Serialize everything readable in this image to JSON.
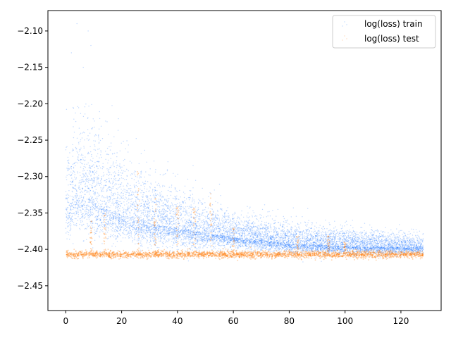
{
  "chart_data": {
    "type": "scatter",
    "title": "",
    "xlabel": "",
    "ylabel": "",
    "xlim": [
      -6.4,
      134.4
    ],
    "ylim": [
      -2.484,
      -2.072
    ],
    "xticks": [
      0,
      20,
      40,
      60,
      80,
      100,
      120
    ],
    "xtick_labels": [
      "0",
      "20",
      "40",
      "60",
      "80",
      "100",
      "120"
    ],
    "yticks": [
      -2.1,
      -2.15,
      -2.2,
      -2.25,
      -2.3,
      -2.35,
      -2.4,
      -2.45
    ],
    "ytick_labels": [
      "−2.10",
      "−2.15",
      "−2.20",
      "−2.25",
      "−2.30",
      "−2.35",
      "−2.40",
      "−2.45"
    ],
    "grid": false,
    "legend_position": "top-right",
    "series": [
      {
        "name": "log(loss) train",
        "color": "#1f77ff",
        "x_range": [
          0,
          128
        ],
        "center_curve": {
          "x": [
            0,
            4,
            8,
            15,
            25,
            40,
            60,
            80,
            100,
            128
          ],
          "y": [
            -2.345,
            -2.325,
            -2.33,
            -2.345,
            -2.36,
            -2.372,
            -2.383,
            -2.392,
            -2.396,
            -2.398
          ]
        },
        "spread_curve": {
          "x": [
            0,
            8,
            25,
            60,
            128
          ],
          "y": [
            0.055,
            0.06,
            0.04,
            0.018,
            0.01
          ]
        },
        "max_outliers": [
          {
            "x": 4,
            "y": -2.09
          },
          {
            "x": 8,
            "y": -2.1
          },
          {
            "x": 2,
            "y": -2.13
          },
          {
            "x": 9,
            "y": -2.12
          }
        ]
      },
      {
        "name": "log(loss) test",
        "color": "#ff7f0e",
        "x_range": [
          0,
          128
        ],
        "center": -2.407,
        "spread": 0.0025,
        "spikes": [
          {
            "x": 9,
            "y_top": -2.36
          },
          {
            "x": 14,
            "y_top": -2.35
          },
          {
            "x": 26,
            "y_top": -2.29
          },
          {
            "x": 32,
            "y_top": -2.33
          },
          {
            "x": 40,
            "y_top": -2.34
          },
          {
            "x": 46,
            "y_top": -2.34
          },
          {
            "x": 52,
            "y_top": -2.32
          },
          {
            "x": 60,
            "y_top": -2.37
          },
          {
            "x": 83,
            "y_top": -2.38
          },
          {
            "x": 94,
            "y_top": -2.38
          },
          {
            "x": 100,
            "y_top": -2.39
          }
        ]
      }
    ]
  }
}
